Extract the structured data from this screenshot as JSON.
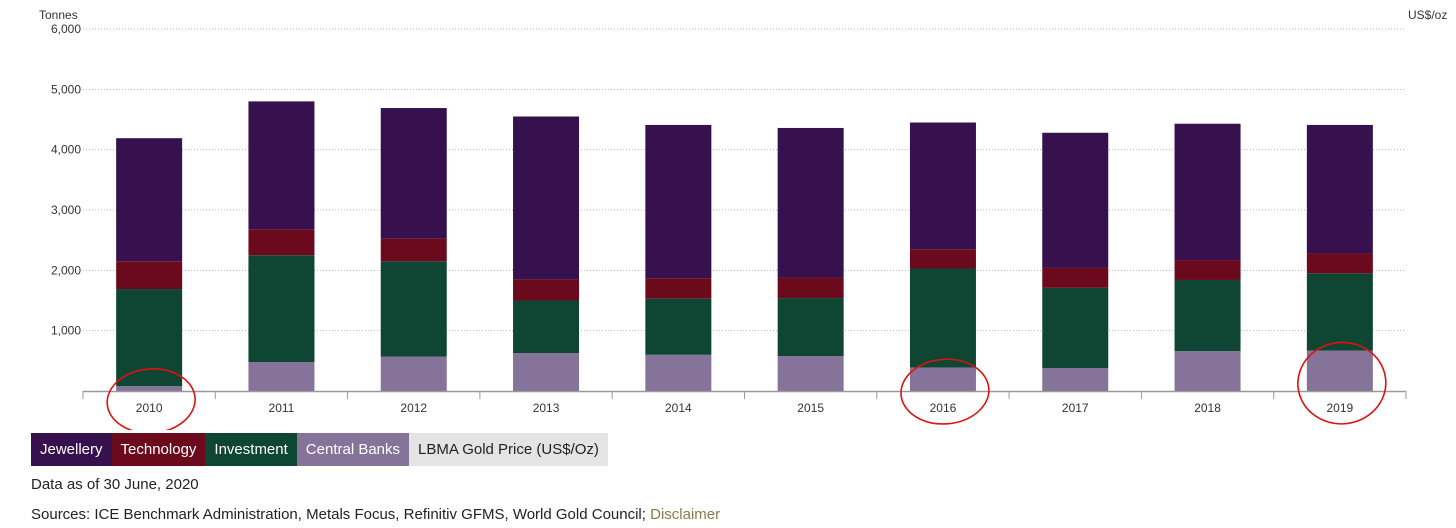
{
  "chart_data": {
    "type": "bar",
    "stacked": true,
    "y_unit_left": "Tonnes",
    "y_unit_right": "US$/oz",
    "ylim": [
      0,
      6000
    ],
    "yticks": [
      "1,000",
      "2,000",
      "3,000",
      "4,000",
      "5,000",
      "6,000"
    ],
    "ytick_values": [
      1000,
      2000,
      3000,
      4000,
      5000,
      6000
    ],
    "grid": true,
    "categories": [
      "2010",
      "2011",
      "2012",
      "2013",
      "2014",
      "2015",
      "2016",
      "2017",
      "2018",
      "2019"
    ],
    "series": [
      {
        "name": "Central Banks",
        "color": "#86739a",
        "values": [
          80,
          480,
          570,
          630,
          600,
          580,
          390,
          380,
          660,
          670
        ]
      },
      {
        "name": "Investment",
        "color": "#0e4633",
        "values": [
          1610,
          1770,
          1580,
          870,
          930,
          960,
          1640,
          1330,
          1180,
          1280
        ]
      },
      {
        "name": "Technology",
        "color": "#6b0a1c",
        "values": [
          460,
          430,
          380,
          350,
          340,
          340,
          320,
          330,
          330,
          330
        ]
      },
      {
        "name": "Jewellery",
        "color": "#37104e",
        "values": [
          2040,
          2120,
          2160,
          2700,
          2540,
          2480,
          2100,
          2240,
          2260,
          2130
        ]
      }
    ],
    "annotations": [
      "red circle around 2010 Central Banks bar",
      "red circle around 2016 Central Banks bar",
      "red circle around 2019 Central Banks bar"
    ],
    "annotation_color": "#e0120e",
    "annotated_categories": [
      "2010",
      "2016",
      "2019"
    ]
  },
  "legend": [
    {
      "label": "Jewellery",
      "color": "#37104e"
    },
    {
      "label": "Technology",
      "color": "#6b0a1c"
    },
    {
      "label": "Investment",
      "color": "#0e4633"
    },
    {
      "label": "Central Banks",
      "color": "#86739a"
    },
    {
      "label": "LBMA Gold Price (US$/Oz)",
      "color": "#e4e4e4"
    }
  ],
  "footer": {
    "data_note": "Data as of 30 June, 2020",
    "sources": "Sources: ICE Benchmark Administration, Metals Focus, Refinitiv GFMS, World Gold Council; ",
    "disclaimer": "Disclaimer"
  }
}
